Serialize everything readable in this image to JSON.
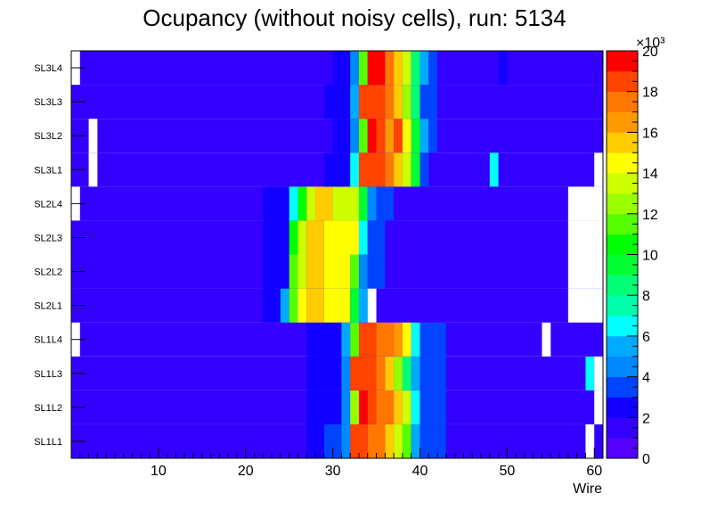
{
  "chart_data": {
    "type": "heatmap",
    "title": "Ocupancy (without noisy cells), run: 5134",
    "xlabel": "Wire",
    "ylabel": "",
    "x_range": [
      0,
      61
    ],
    "x_ticks": [
      10,
      20,
      30,
      40,
      50,
      60
    ],
    "y_categories": [
      "SL1L1",
      "SL1L2",
      "SL1L3",
      "SL1L4",
      "SL2L1",
      "SL2L2",
      "SL2L3",
      "SL2L4",
      "SL3L1",
      "SL3L2",
      "SL3L3",
      "SL3L4"
    ],
    "z_range": [
      0,
      20000
    ],
    "z_multiplier_label": "×10³",
    "z_ticks": [
      0,
      2,
      4,
      6,
      8,
      10,
      12,
      14,
      16,
      18,
      20
    ],
    "empty_value": 0,
    "baseline_value": 1000,
    "rows": [
      {
        "layer": "SL1L1",
        "cells": [
          [
            28,
            29,
            2800
          ],
          [
            30,
            31,
            3200
          ],
          [
            32,
            32,
            4200
          ],
          [
            33,
            34,
            18500
          ],
          [
            35,
            36,
            17000
          ],
          [
            37,
            37,
            15500
          ],
          [
            38,
            38,
            13000
          ],
          [
            39,
            39,
            11000
          ],
          [
            40,
            40,
            5000
          ],
          [
            41,
            43,
            3000
          ]
        ],
        "empty": [
          [
            60,
            60
          ]
        ]
      },
      {
        "layer": "SL1L2",
        "cells": [
          [
            28,
            31,
            2800
          ],
          [
            32,
            32,
            4200
          ],
          [
            33,
            33,
            12000
          ],
          [
            34,
            34,
            19000
          ],
          [
            35,
            35,
            18500
          ],
          [
            36,
            37,
            17500
          ],
          [
            38,
            38,
            15000
          ],
          [
            39,
            39,
            13500
          ],
          [
            40,
            40,
            6500
          ],
          [
            41,
            43,
            3000
          ]
        ],
        "empty": [
          [
            61,
            61
          ]
        ]
      },
      {
        "layer": "SL1L3",
        "cells": [
          [
            28,
            31,
            2800
          ],
          [
            32,
            32,
            4500
          ],
          [
            33,
            35,
            18500
          ],
          [
            36,
            36,
            17500
          ],
          [
            37,
            37,
            15500
          ],
          [
            38,
            38,
            12500
          ],
          [
            39,
            39,
            8500
          ],
          [
            40,
            40,
            5000
          ],
          [
            41,
            43,
            3000
          ],
          [
            60,
            60,
            6000
          ]
        ],
        "empty": [
          [
            61,
            61
          ]
        ]
      },
      {
        "layer": "SL1L4",
        "cells": [
          [
            28,
            31,
            2800
          ],
          [
            32,
            32,
            5000
          ],
          [
            33,
            33,
            11500
          ],
          [
            34,
            35,
            18500
          ],
          [
            36,
            37,
            17500
          ],
          [
            38,
            38,
            16000
          ],
          [
            39,
            39,
            14000
          ],
          [
            40,
            40,
            6500
          ],
          [
            41,
            43,
            3000
          ]
        ],
        "empty": [
          [
            1,
            1
          ],
          [
            55,
            55
          ]
        ]
      },
      {
        "layer": "SL2L1",
        "cells": [
          [
            23,
            24,
            2800
          ],
          [
            25,
            25,
            5000
          ],
          [
            26,
            26,
            11000
          ],
          [
            27,
            27,
            14500
          ],
          [
            28,
            29,
            15500
          ],
          [
            30,
            32,
            14000
          ],
          [
            33,
            33,
            9500
          ],
          [
            34,
            34,
            5500
          ]
        ],
        "empty": [
          [
            35,
            35
          ],
          [
            58,
            61
          ]
        ]
      },
      {
        "layer": "SL2L2",
        "cells": [
          [
            23,
            25,
            2800
          ],
          [
            26,
            26,
            11000
          ],
          [
            27,
            27,
            13500
          ],
          [
            28,
            29,
            15000
          ],
          [
            30,
            32,
            14000
          ],
          [
            33,
            33,
            11500
          ],
          [
            34,
            34,
            4500
          ],
          [
            35,
            36,
            3000
          ]
        ],
        "empty": [
          [
            58,
            61
          ]
        ]
      },
      {
        "layer": "SL2L3",
        "cells": [
          [
            23,
            25,
            2800
          ],
          [
            26,
            26,
            10500
          ],
          [
            27,
            27,
            13500
          ],
          [
            28,
            29,
            15000
          ],
          [
            30,
            33,
            14000
          ],
          [
            34,
            34,
            6500
          ],
          [
            35,
            36,
            3000
          ]
        ],
        "empty": [
          [
            58,
            61
          ]
        ]
      },
      {
        "layer": "SL2L4",
        "cells": [
          [
            23,
            25,
            2800
          ],
          [
            26,
            26,
            6500
          ],
          [
            27,
            27,
            10500
          ],
          [
            28,
            28,
            13500
          ],
          [
            29,
            30,
            15500
          ],
          [
            31,
            33,
            13500
          ],
          [
            34,
            34,
            9000
          ],
          [
            35,
            35,
            4500
          ],
          [
            36,
            37,
            3000
          ]
        ],
        "empty": [
          [
            1,
            1
          ],
          [
            58,
            61
          ]
        ]
      },
      {
        "layer": "SL3L1",
        "cells": [
          [
            30,
            32,
            2800
          ],
          [
            33,
            33,
            6000
          ],
          [
            34,
            36,
            18500
          ],
          [
            37,
            37,
            17000
          ],
          [
            38,
            38,
            15500
          ],
          [
            39,
            39,
            13500
          ],
          [
            40,
            40,
            9000
          ],
          [
            41,
            41,
            3000
          ],
          [
            49,
            49,
            6000
          ]
        ],
        "empty": [
          [
            3,
            3
          ],
          [
            61,
            61
          ]
        ]
      },
      {
        "layer": "SL3L2",
        "cells": [
          [
            31,
            32,
            2800
          ],
          [
            33,
            33,
            4500
          ],
          [
            34,
            34,
            11500
          ],
          [
            35,
            35,
            19500
          ],
          [
            36,
            36,
            18500
          ],
          [
            37,
            37,
            16000
          ],
          [
            38,
            38,
            18000
          ],
          [
            39,
            39,
            14500
          ],
          [
            40,
            40,
            9000
          ],
          [
            41,
            41,
            5000
          ],
          [
            42,
            42,
            3000
          ]
        ],
        "empty": [
          [
            3,
            3
          ]
        ]
      },
      {
        "layer": "SL3L3",
        "cells": [
          [
            30,
            32,
            2800
          ],
          [
            33,
            33,
            5000
          ],
          [
            34,
            36,
            18500
          ],
          [
            37,
            37,
            17000
          ],
          [
            38,
            38,
            15000
          ],
          [
            39,
            39,
            12500
          ],
          [
            40,
            40,
            8000
          ],
          [
            41,
            42,
            3000
          ]
        ],
        "empty": []
      },
      {
        "layer": "SL3L4",
        "cells": [
          [
            31,
            32,
            2800
          ],
          [
            33,
            33,
            4500
          ],
          [
            34,
            34,
            11500
          ],
          [
            35,
            36,
            19500
          ],
          [
            37,
            37,
            17500
          ],
          [
            38,
            38,
            15500
          ],
          [
            39,
            39,
            13500
          ],
          [
            40,
            40,
            8000
          ],
          [
            41,
            41,
            5000
          ],
          [
            42,
            42,
            3000
          ],
          [
            50,
            50,
            2800
          ]
        ],
        "empty": [
          [
            1,
            1
          ]
        ]
      }
    ]
  }
}
